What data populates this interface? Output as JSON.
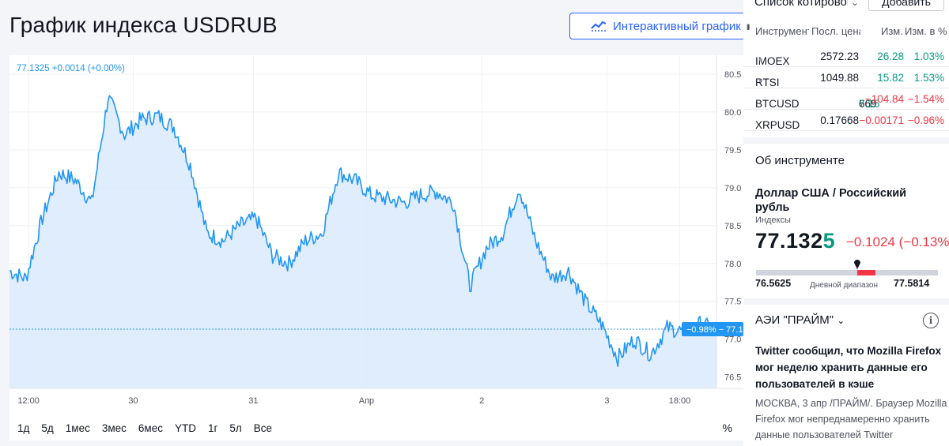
{
  "page": {
    "title": "График индекса USDRUB",
    "interactive_button": "Интерактивный график"
  },
  "chart": {
    "legend": "77.1325 +0.0014 (+0.00%)",
    "y_ticks": [
      "80.5",
      "80.0",
      "79.5",
      "79.0",
      "78.5",
      "78.0",
      "77.5",
      "77.0",
      "76.5"
    ],
    "x_ticks": [
      "12:00",
      "30",
      "31",
      "Апр",
      "2",
      "3",
      "18:00"
    ],
    "last_price_label": "−0.98% − 77.1",
    "range_buttons": [
      "1д",
      "5д",
      "1мес",
      "3мес",
      "6мес",
      "YTD",
      "1г",
      "5л",
      "Все"
    ],
    "percent_toggle": "%",
    "colors": {
      "line": "#2196f3",
      "fill": "#dbeafb",
      "price_line": "#2196f3"
    }
  },
  "chart_data": {
    "type": "area",
    "title": "График индекса USDRUB",
    "series": [
      {
        "name": "USDRUB",
        "x": [
          "29 12:00",
          "29 15:00",
          "29 18:00",
          "29 21:00",
          "30 00:00",
          "30 03:00",
          "30 06:00",
          "30 09:00",
          "30 12:00",
          "30 15:00",
          "30 18:00",
          "30 21:00",
          "31 00:00",
          "31 03:00",
          "31 06:00",
          "31 09:00",
          "31 12:00",
          "31 15:00",
          "31 18:00",
          "31 21:00",
          "1 00:00",
          "1 03:00",
          "1 06:00",
          "1 09:00",
          "1 12:00",
          "1 15:00",
          "1 18:00",
          "1 21:00",
          "2 00:00",
          "2 03:00",
          "2 06:00",
          "2 09:00",
          "2 12:00",
          "2 15:00",
          "2 18:00",
          "2 21:00",
          "3 00:00",
          "3 03:00",
          "3 06:00",
          "3 09:00",
          "3 12:00",
          "3 15:00",
          "3 18:00",
          "3 21:00"
        ],
        "values": [
          77.9,
          77.8,
          78.6,
          79.2,
          79.1,
          78.8,
          80.2,
          79.7,
          79.9,
          79.95,
          79.8,
          79.3,
          78.4,
          78.3,
          78.5,
          78.6,
          78.1,
          78.0,
          78.3,
          78.4,
          79.2,
          79.1,
          78.9,
          78.85,
          78.8,
          78.9,
          78.95,
          78.8,
          77.7,
          78.2,
          78.4,
          79.0,
          78.3,
          77.8,
          77.9,
          77.5,
          77.2,
          76.75,
          77.0,
          76.8,
          77.15,
          77.1,
          77.2,
          77.13
        ]
      }
    ],
    "ylim": [
      76.35,
      80.75
    ],
    "ylabel": "",
    "xlabel": "",
    "last_value": 77.1325,
    "grid": true
  },
  "watchlist": {
    "title": "Список котировок",
    "add_button": "Добавить",
    "columns": {
      "instrument": "Инструмент",
      "last": "Посл. цена",
      "chg": "Изм.",
      "chgp": "Изм. в %"
    },
    "rows": [
      {
        "symbol": "IMOEX",
        "dot": "●",
        "last": "2572.23",
        "chg": "26.28",
        "chgp": "1.03%",
        "dir": "pos"
      },
      {
        "symbol": "RTSI",
        "dot": "●",
        "last": "1049.88",
        "chg": "15.82",
        "chgp": "1.53%",
        "dir": "pos"
      },
      {
        "symbol": "BTCUSD",
        "dot": "",
        "last_main": "669",
        "last_tail": "7.15",
        "chg": "−104.84",
        "chgp": "−1.54%",
        "dir": "neg"
      },
      {
        "symbol": "XRPUSD",
        "dot": "",
        "last": "0.17668",
        "chg": "−0.00171",
        "chgp": "−0.96%",
        "dir": "neg"
      }
    ]
  },
  "about": {
    "title": "Об инструменте",
    "name": "Доллар США / Российский рубль",
    "type": "Индексы",
    "price_main": "77.132",
    "price_tail": "5",
    "change": "−0.1024 (−0.13%)",
    "day_low": "76.5625",
    "day_label": "Дневной диапазон",
    "day_high": "77.5814",
    "day_position": 0.556
  },
  "news": {
    "source": "АЭИ \"ПРАЙМ\"",
    "headline": "Twitter сообщил, что Mozilla Firefox мог неделю хранить данные его пользователей в кэше",
    "body": "МОСКВА, 3 апр /ПРАЙМ/. Браузер Mozilla Firefox мог непреднамеренно хранить данные пользователей Twitter"
  }
}
